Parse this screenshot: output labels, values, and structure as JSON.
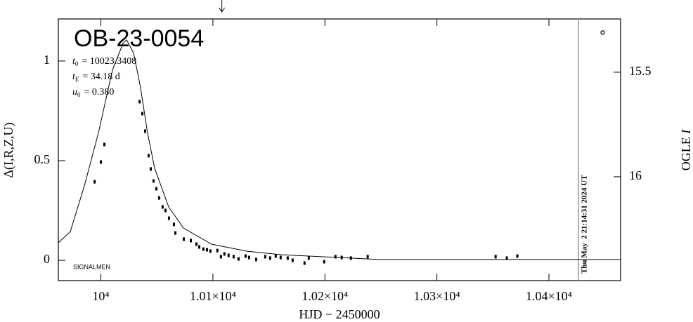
{
  "chart_data": {
    "type": "scatter",
    "title": "OB-23-0054",
    "parameters": [
      {
        "symbol": "t",
        "sub": "0",
        "text": "= 10023.3408"
      },
      {
        "symbol": "t",
        "sub": "E",
        "text": "= 34.18 d"
      },
      {
        "symbol": "u",
        "sub": "0",
        "text": "= 0.380"
      }
    ],
    "xlabel": "HJD − 2450000",
    "ylabel": "Δ(I,R,Z,U)",
    "y2label": {
      "text": "OGLE ",
      "italic": "I"
    },
    "footnote": "SIGNALMEN",
    "xlim": [
      9962,
      10464
    ],
    "xticks": [
      {
        "value": 10000,
        "label": "10⁴"
      },
      {
        "value": 10100,
        "label": "1.01×10⁴"
      },
      {
        "value": 10200,
        "label": "1.02×10⁴"
      },
      {
        "value": 10300,
        "label": "1.03×10⁴"
      },
      {
        "value": 10400,
        "label": "1.04×10⁴"
      }
    ],
    "ylim": [
      -0.102,
      1.211
    ],
    "yticks": [
      0,
      0.5,
      1
    ],
    "y2lim": [
      16.497,
      15.245
    ],
    "y2ticks": [
      15.5,
      16
    ],
    "color": "#000000",
    "points": {
      "x": [
        9994.4,
        10000,
        10003.1,
        10034.5,
        10037,
        10039.5,
        10042.6,
        10044.5,
        10047,
        10049.5,
        10052,
        10055.1,
        10057.6,
        10060.8,
        10065.2,
        10066.5,
        10074,
        10080.3,
        10085.3,
        10087.8,
        10091.5,
        10094.7,
        10097.8,
        10104,
        10107.2,
        10110.3,
        10114,
        10118.5,
        10122.9,
        10129.2,
        10132.3,
        10138.6,
        10146.7,
        10151.1,
        10156.1,
        10160.5,
        10166.8,
        10171.2,
        10181.8,
        10185.6,
        10199.4,
        10209.4,
        10215,
        10223.2,
        10238.2,
        10352.4,
        10362.4,
        10371.8
      ],
      "values": [
        0.394,
        0.493,
        0.581,
        0.796,
        0.736,
        0.648,
        0.525,
        0.458,
        0.398,
        0.359,
        0.313,
        0.268,
        0.25,
        0.211,
        0.18,
        0.137,
        0.106,
        0.099,
        0.081,
        0.067,
        0.056,
        0.053,
        0.046,
        0.049,
        0.018,
        0.032,
        0.025,
        0.018,
        0.007,
        0.021,
        0.014,
        0.004,
        0.018,
        0.011,
        0.021,
        0.014,
        0.011,
        0,
        -0.014,
        0.011,
        -0.007,
        0.018,
        0.014,
        0.011,
        0.018,
        0.018,
        0.011,
        0.021
      ]
    },
    "model": {
      "x": [
        9962,
        9972.7,
        9985.2,
        9997.7,
        10010.3,
        10019.7,
        10022.9,
        10029.2,
        10035.4,
        10041.7,
        10048,
        10060.5,
        10073.7,
        10098.7,
        10130,
        10161,
        10223,
        10248.7,
        10464
      ],
      "values": [
        0.088,
        0.144,
        0.373,
        0.637,
        0.954,
        1.088,
        1.106,
        1.04,
        0.866,
        0.637,
        0.461,
        0.268,
        0.162,
        0.081,
        0.046,
        0.028,
        0.011,
        0.004,
        0.004
      ]
    },
    "current": {
      "x": 10448,
      "value": 15.31,
      "axis": "y2"
    },
    "arrow_x": 10108,
    "now_line": {
      "x": 10426.3,
      "label": "Thu May  2 21:14:31 2024 UT",
      "color": "#999999"
    }
  }
}
